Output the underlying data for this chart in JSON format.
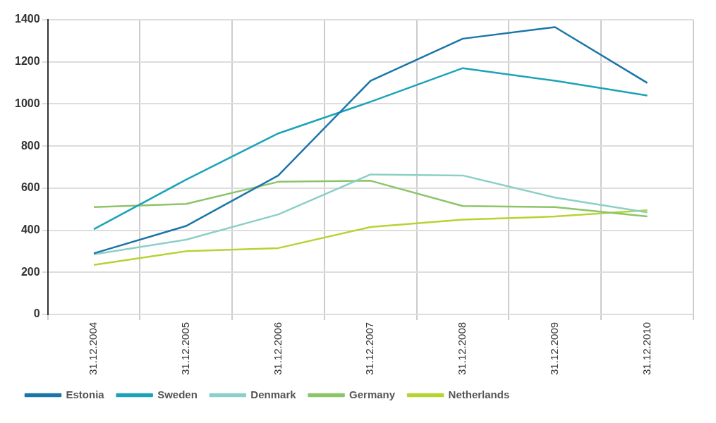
{
  "chart_data": {
    "type": "line",
    "categories": [
      "31.12.2004",
      "31.12.2005",
      "31.12.2006",
      "31.12.2007",
      "31.12.2008",
      "31.12.2009",
      "31.12.2010"
    ],
    "series": [
      {
        "name": "Estonia",
        "color": "#1a75a8",
        "values": [
          290,
          420,
          660,
          1110,
          1310,
          1365,
          1100
        ]
      },
      {
        "name": "Sweden",
        "color": "#1ba3b8",
        "values": [
          405,
          640,
          860,
          1010,
          1170,
          1110,
          1040
        ]
      },
      {
        "name": "Denmark",
        "color": "#8ccfc8",
        "values": [
          285,
          355,
          475,
          665,
          660,
          555,
          485
        ]
      },
      {
        "name": "Germany",
        "color": "#8cc46a",
        "values": [
          510,
          525,
          630,
          635,
          515,
          510,
          465
        ]
      },
      {
        "name": "Netherlands",
        "color": "#b5d433",
        "values": [
          235,
          300,
          315,
          415,
          450,
          465,
          495
        ]
      }
    ],
    "ylim": [
      0,
      1400
    ],
    "yticks": [
      0,
      200,
      400,
      600,
      800,
      1000,
      1200,
      1400
    ],
    "grid": true,
    "legend": "bottom",
    "marker": "none",
    "line_style": "solid"
  }
}
